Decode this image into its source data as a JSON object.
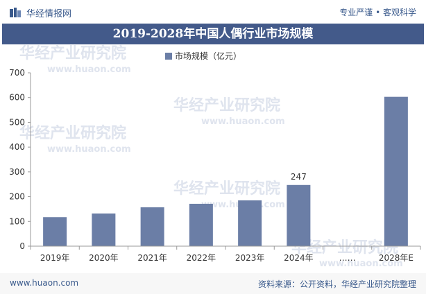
{
  "header": {
    "logo_text": "华经情报网",
    "tagline_left": "专业严谨",
    "tagline_separator": "•",
    "tagline_right": "客观科学"
  },
  "footer": {
    "url": "www.huaon.com",
    "source": "资料来源：公开资料，华经产业研究院整理"
  },
  "watermark": {
    "text_cn": "华经产业研究院",
    "text_url": "www.huaon.com"
  },
  "colors": {
    "title_bg": "#435a8a",
    "bar": "#6b7ea6",
    "brand": "#3a5a8c"
  },
  "chart_data": {
    "type": "bar",
    "title": "2019-2028年中国人偶行业市场规模",
    "legend": "市场规模（亿元）",
    "legend_position": "top-center",
    "categories": [
      "2019年",
      "2020年",
      "2021年",
      "2022年",
      "2023年",
      "2024年",
      "……",
      "2028年E"
    ],
    "values": [
      117,
      132,
      157,
      171,
      185,
      247,
      null,
      603
    ],
    "data_labels": [
      "",
      "",
      "",
      "",
      "",
      "247",
      "",
      ""
    ],
    "ylim": [
      0,
      700
    ],
    "yticks": [
      0,
      100,
      200,
      300,
      400,
      500,
      600,
      700
    ],
    "grid": false
  }
}
